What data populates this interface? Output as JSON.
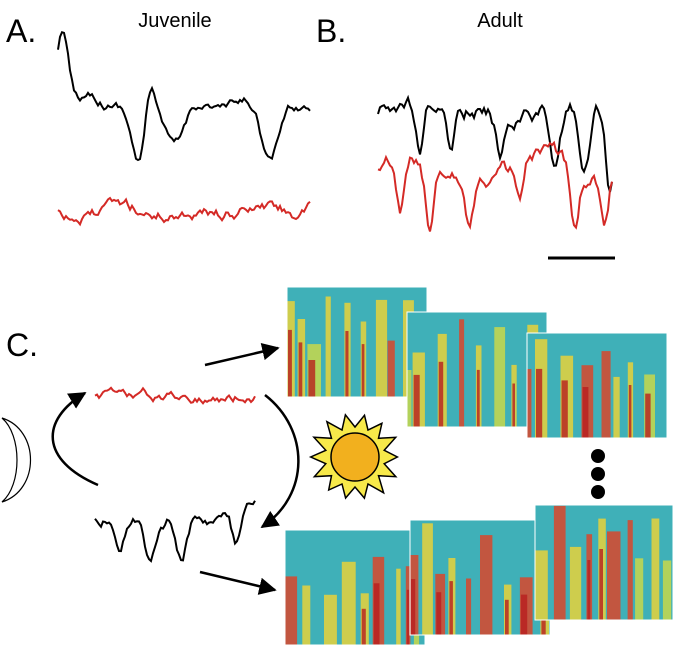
{
  "panels": [
    {
      "label": "A.",
      "title": "Juvenile"
    },
    {
      "label": "B.",
      "title": "Adult"
    },
    {
      "label": "C."
    }
  ]
}
